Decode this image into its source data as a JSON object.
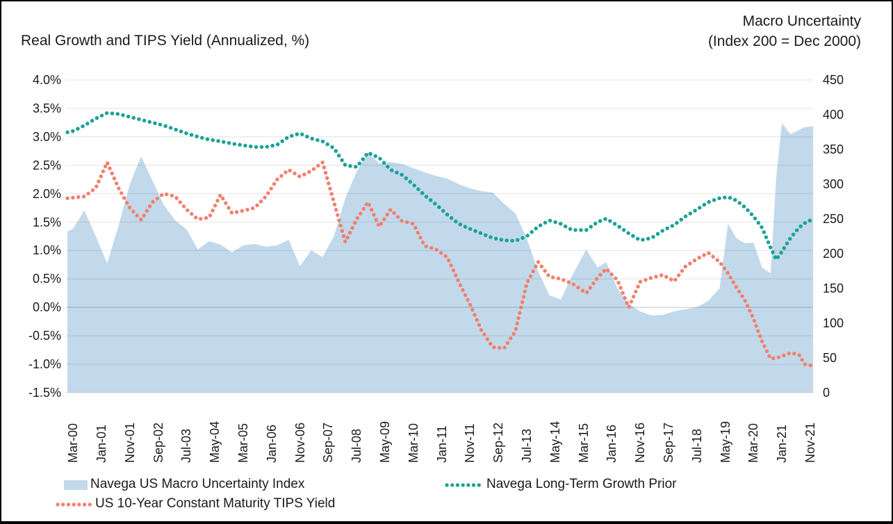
{
  "titles": {
    "left": "Real Growth and TIPS Yield (Annualized, %)",
    "right_line1": "Macro Uncertainty",
    "right_line2": "(Index 200 = Dec 2000)"
  },
  "legend": {
    "items": [
      {
        "label": "Navega US Macro Uncertainty Index",
        "swatch": "area",
        "color": "#C2D9EB"
      },
      {
        "label": "Navega Long-Term Growth Prior",
        "swatch": "dots",
        "color": "#16A296"
      },
      {
        "label": "US 10-Year Constant Maturity TIPS Yield",
        "swatch": "dots",
        "color": "#F2806D"
      }
    ]
  },
  "chart_data": {
    "type": "area + dotted line combo, dual axis",
    "title_left_axis": "Real Growth and TIPS Yield (Annualized, %)",
    "title_right_axis": "Macro Uncertainty (Index 200 = Dec 2000)",
    "grid": "horizontal gridlines every 0.5% of left axis",
    "y_left": {
      "ticks": [
        "4.0%",
        "3.5%",
        "3.0%",
        "2.5%",
        "2.0%",
        "1.5%",
        "1.0%",
        "0.5%",
        "0.0%",
        "-0.5%",
        "-1.0%",
        "-1.5%"
      ],
      "max": 4.0,
      "min": -1.5,
      "step": 0.5
    },
    "y_right": {
      "ticks": [
        "450",
        "400",
        "350",
        "300",
        "250",
        "200",
        "150",
        "100",
        "50",
        "0"
      ],
      "max": 450,
      "min": 0,
      "step": 50
    },
    "x_axis": {
      "labels": [
        "Mar-00",
        "Jan-01",
        "Nov-01",
        "Sep-02",
        "Jul-03",
        "May-04",
        "Mar-05",
        "Jan-06",
        "Nov-06",
        "Sep-07",
        "Jul-08",
        "May-09",
        "Mar-10",
        "Jan-11",
        "Nov-11",
        "Sep-12",
        "Jul-13",
        "May-14",
        "Mar-15",
        "Jan-16",
        "Nov-16",
        "Sep-17",
        "Jul-18",
        "May-19",
        "Mar-20",
        "Jan-21",
        "Nov-21"
      ],
      "label_months": [
        0,
        10,
        20,
        30,
        40,
        50,
        60,
        70,
        80,
        90,
        100,
        110,
        120,
        130,
        140,
        150,
        160,
        170,
        180,
        190,
        200,
        210,
        220,
        230,
        240,
        250,
        260
      ],
      "month_zero": "Mar-00",
      "frequency": "monthly"
    },
    "month_domain": [
      -2.5,
      261
    ],
    "months": [
      -2,
      0,
      4,
      8,
      12,
      16,
      20,
      24,
      28,
      32,
      36,
      40,
      44,
      48,
      52,
      56,
      60,
      64,
      68,
      72,
      76,
      80,
      84,
      88,
      92,
      96,
      100,
      104,
      108,
      112,
      116,
      120,
      124,
      128,
      132,
      136,
      140,
      144,
      148,
      152,
      156,
      160,
      164,
      168,
      172,
      176,
      181,
      185,
      188,
      192,
      196,
      200,
      204,
      208,
      212,
      216,
      220,
      224,
      228,
      231,
      234,
      237,
      240,
      243,
      246,
      248,
      250,
      253,
      256,
      258,
      260,
      261
    ],
    "series": [
      {
        "name": "Navega US Macro Uncertainty Index",
        "type": "area",
        "axis": "right",
        "color": "#C2D9EB",
        "values": [
          232,
          236,
          262,
          225,
          186,
          240,
          300,
          340,
          305,
          270,
          248,
          235,
          206,
          218,
          213,
          202,
          212,
          214,
          210,
          212,
          220,
          182,
          205,
          195,
          225,
          280,
          318,
          346,
          330,
          332,
          329,
          323,
          317,
          312,
          308,
          300,
          294,
          290,
          288,
          272,
          258,
          222,
          175,
          140,
          134,
          168,
          206,
          180,
          188,
          150,
          128,
          117,
          111,
          112,
          117,
          120,
          123,
          132,
          150,
          243,
          222,
          215,
          216,
          180,
          172,
          310,
          388,
          372,
          378,
          382,
          383,
          383
        ]
      },
      {
        "name": "Navega Long-Term Growth Prior",
        "type": "dotted-line",
        "axis": "left",
        "color": "#16A296",
        "values": [
          3.08,
          3.1,
          3.2,
          3.32,
          3.42,
          3.4,
          3.35,
          3.3,
          3.25,
          3.2,
          3.13,
          3.06,
          3.0,
          2.95,
          2.92,
          2.88,
          2.85,
          2.82,
          2.82,
          2.86,
          3.0,
          3.06,
          2.97,
          2.92,
          2.8,
          2.5,
          2.47,
          2.72,
          2.63,
          2.42,
          2.33,
          2.16,
          1.97,
          1.81,
          1.63,
          1.47,
          1.38,
          1.3,
          1.22,
          1.18,
          1.17,
          1.25,
          1.42,
          1.53,
          1.47,
          1.36,
          1.36,
          1.5,
          1.56,
          1.44,
          1.3,
          1.18,
          1.22,
          1.35,
          1.45,
          1.6,
          1.72,
          1.85,
          1.92,
          1.94,
          1.88,
          1.76,
          1.6,
          1.4,
          1.05,
          0.84,
          0.98,
          1.22,
          1.4,
          1.48,
          1.53,
          1.53
        ]
      },
      {
        "name": "US 10-Year Constant Maturity TIPS Yield",
        "type": "dotted-line",
        "axis": "left",
        "color": "#F2806D",
        "values": [
          1.92,
          1.93,
          1.95,
          2.1,
          2.55,
          2.1,
          1.75,
          1.54,
          1.85,
          2.0,
          1.95,
          1.72,
          1.55,
          1.58,
          1.98,
          1.66,
          1.7,
          1.75,
          1.95,
          2.25,
          2.42,
          2.3,
          2.4,
          2.55,
          1.85,
          1.15,
          1.55,
          1.85,
          1.42,
          1.72,
          1.52,
          1.47,
          1.08,
          1.02,
          0.88,
          0.45,
          0.05,
          -0.4,
          -0.7,
          -0.72,
          -0.42,
          0.42,
          0.8,
          0.54,
          0.5,
          0.42,
          0.25,
          0.52,
          0.68,
          0.48,
          0.0,
          0.45,
          0.52,
          0.57,
          0.46,
          0.72,
          0.85,
          0.96,
          0.8,
          0.6,
          0.35,
          0.12,
          -0.2,
          -0.6,
          -0.9,
          -0.89,
          -0.86,
          -0.8,
          -0.83,
          -1.0,
          -1.02,
          -1.02
        ]
      }
    ]
  },
  "style_colors": {
    "gridline": "rgba(0,0,0,0.085)",
    "zero_gridline": "rgba(0,0,0,0.16)",
    "text": "#1a1a1a",
    "frame_border": "#000000"
  }
}
